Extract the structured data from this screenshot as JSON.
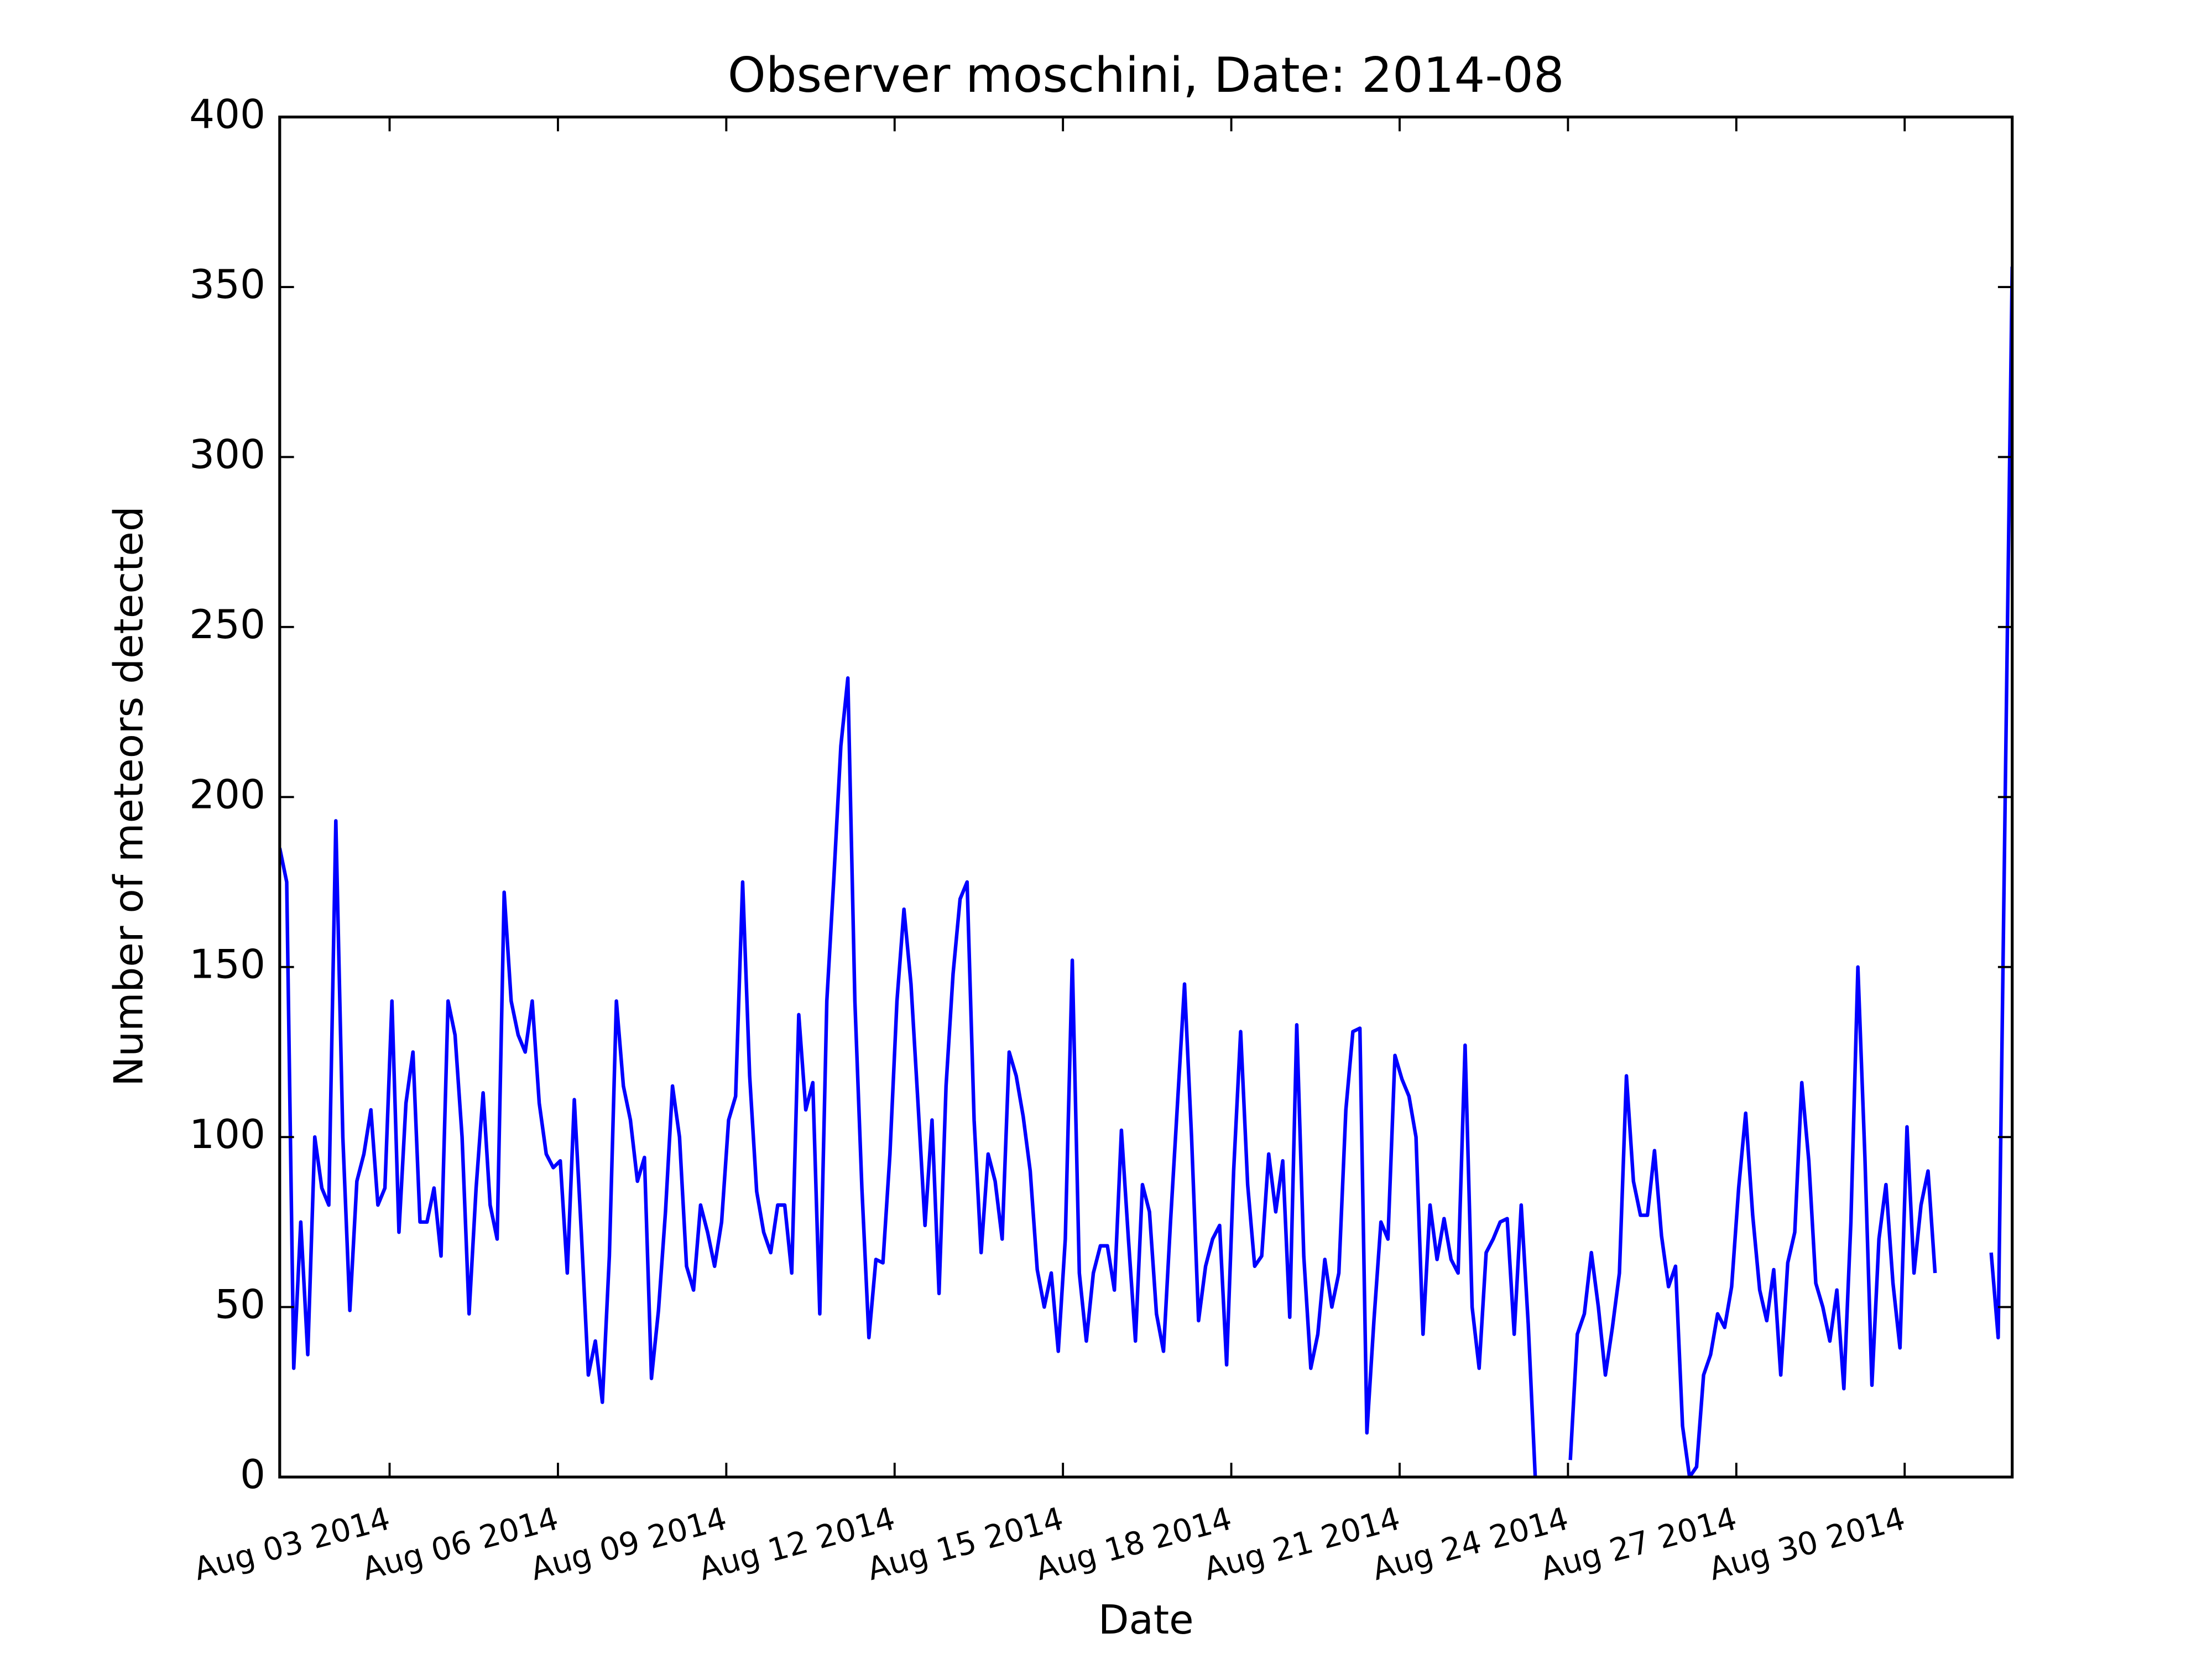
{
  "chart_data": {
    "type": "line",
    "title": "Observer moschini, Date: 2014-08",
    "x_label": "Date",
    "y_label": "Number of meteors detected",
    "x": [
      1,
      4,
      7,
      10,
      13,
      16,
      19,
      22,
      25,
      28,
      31,
      34,
      37,
      40,
      43,
      46,
      49,
      52,
      55,
      58,
      61,
      64,
      67,
      70,
      73,
      76,
      79,
      82,
      85,
      88,
      91,
      94,
      97,
      100,
      103,
      106,
      109,
      112,
      115,
      118,
      121,
      124,
      127,
      130,
      133,
      136,
      139,
      142,
      145,
      148,
      151,
      154,
      157,
      160,
      163,
      166,
      169,
      172,
      175,
      178,
      181,
      184,
      187,
      190,
      193,
      196,
      199,
      202,
      205,
      208,
      211,
      214,
      217,
      220,
      223,
      226,
      229,
      232,
      235,
      238,
      241,
      244,
      247,
      250,
      253,
      256,
      259,
      262,
      265,
      268,
      271,
      274,
      277,
      280,
      283,
      286,
      289,
      292,
      295,
      298,
      301,
      304,
      307,
      310,
      313,
      316,
      319,
      322,
      325,
      328,
      331,
      334,
      337,
      340,
      343,
      346,
      349,
      352,
      355,
      358,
      361,
      364,
      367,
      370,
      373,
      376,
      379,
      382,
      385,
      388,
      391,
      394,
      397,
      400,
      403,
      406,
      409,
      412,
      415,
      418,
      421,
      424,
      427,
      430,
      433,
      436,
      439,
      442,
      445,
      448,
      451,
      454,
      457,
      460,
      463,
      466,
      469,
      472,
      475,
      478,
      481,
      484,
      487,
      490,
      493,
      496,
      499,
      502,
      505,
      508,
      511,
      514,
      517,
      520,
      523,
      526,
      529,
      532,
      535,
      538,
      541,
      544,
      547,
      550,
      553,
      556,
      559,
      562,
      565,
      568,
      571,
      574,
      577,
      580,
      583,
      586,
      589,
      592,
      595,
      598,
      601,
      604,
      607,
      610,
      613,
      616,
      619,
      622,
      625,
      628,
      631,
      634,
      637,
      640,
      643,
      646,
      649,
      652,
      655,
      658,
      661,
      664,
      667,
      670,
      673,
      676,
      679,
      682,
      685,
      688,
      691,
      694,
      697,
      700,
      703,
      706,
      709,
      712,
      715,
      718,
      721,
      724,
      727,
      730,
      733,
      736,
      739,
      742
    ],
    "series": [
      {
        "color": "#0000ff",
        "values": [
          185,
          175,
          32,
          75,
          36,
          100,
          85,
          80,
          193,
          100,
          49,
          87,
          95,
          108,
          80,
          85,
          140,
          72,
          110,
          125,
          75,
          75,
          85,
          65,
          140,
          130,
          100,
          48,
          85,
          113,
          80,
          70,
          172,
          140,
          130,
          125,
          140,
          110,
          95,
          91,
          93,
          60,
          111,
          72,
          30,
          40,
          22,
          65,
          140,
          115,
          105,
          87,
          94,
          29,
          49,
          78,
          115,
          100,
          62,
          55,
          80,
          72,
          62,
          75,
          105,
          112,
          175,
          118,
          84,
          72,
          66,
          80,
          80,
          60,
          136,
          108,
          116,
          48,
          140,
          176,
          215,
          235,
          140,
          85,
          41,
          64,
          63,
          95,
          140,
          167,
          145,
          110,
          74,
          105,
          54,
          115,
          148,
          170,
          175,
          105,
          66,
          95,
          87,
          70,
          125,
          118,
          106,
          90,
          61,
          50,
          60,
          37,
          70,
          152,
          60,
          40,
          60,
          68,
          68,
          55,
          102,
          70,
          40,
          86,
          78,
          48,
          37,
          75,
          110,
          145,
          100,
          46,
          62,
          70,
          74,
          33,
          90,
          131,
          86,
          62,
          65,
          95,
          78,
          93,
          47,
          133,
          65,
          32,
          42,
          64,
          50,
          60,
          108,
          131,
          132,
          13,
          46,
          75,
          70,
          124,
          117,
          112,
          100,
          42,
          80,
          64,
          76,
          64,
          60,
          127,
          50,
          32,
          66,
          70,
          75,
          76,
          42,
          80,
          45,
          0,
          null,
          null,
          null,
          null,
          5,
          42,
          48,
          66,
          50,
          30,
          44,
          60,
          118,
          87,
          77,
          77,
          96,
          71,
          56,
          62,
          15,
          0,
          3,
          30,
          36,
          48,
          44,
          56,
          85,
          107,
          77,
          55,
          46,
          61,
          30,
          63,
          72,
          116,
          93,
          57,
          50,
          40,
          55,
          26,
          75,
          150,
          94,
          27,
          70,
          86,
          57,
          38,
          103,
          60,
          80,
          90,
          60,
          null,
          null,
          null,
          null,
          null,
          null,
          null,
          66,
          41,
          200,
          356
        ]
      }
    ],
    "xlim": [
      1,
      742
    ],
    "ylim": [
      0,
      400
    ],
    "xticks": [
      {
        "value": 48,
        "label": "Aug 03 2014"
      },
      {
        "value": 120,
        "label": "Aug 06 2014"
      },
      {
        "value": 192,
        "label": "Aug 09 2014"
      },
      {
        "value": 264,
        "label": "Aug 12 2014"
      },
      {
        "value": 336,
        "label": "Aug 15 2014"
      },
      {
        "value": 408,
        "label": "Aug 18 2014"
      },
      {
        "value": 480,
        "label": "Aug 21 2014"
      },
      {
        "value": 552,
        "label": "Aug 24 2014"
      },
      {
        "value": 624,
        "label": "Aug 27 2014"
      },
      {
        "value": 696,
        "label": "Aug 30 2014"
      }
    ],
    "yticks": [
      0,
      50,
      100,
      150,
      200,
      250,
      300,
      350,
      400
    ]
  }
}
